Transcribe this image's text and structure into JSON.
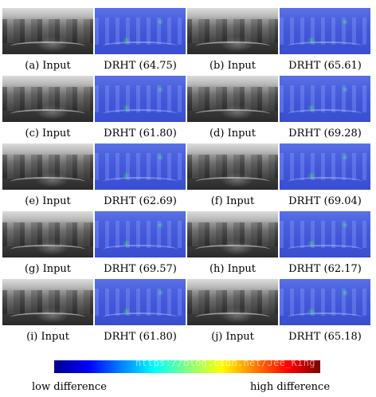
{
  "panels": [
    {
      "input_label": "(a) Input",
      "result_label": "DRHT (64.75)"
    },
    {
      "input_label": "(b) Input",
      "result_label": "DRHT (65.61)"
    },
    {
      "input_label": "(c) Input",
      "result_label": "DRHT (61.80)"
    },
    {
      "input_label": "(d) Input",
      "result_label": "DRHT (69.28)"
    },
    {
      "input_label": "(e) Input",
      "result_label": "DRHT (62.69)"
    },
    {
      "input_label": "(f) Input",
      "result_label": "DRHT (69.04)"
    },
    {
      "input_label": "(g) Input",
      "result_label": "DRHT (69.57)"
    },
    {
      "input_label": "(h) Input",
      "result_label": "DRHT (62.17)"
    },
    {
      "input_label": "(i) Input",
      "result_label": "DRHT (61.80)"
    },
    {
      "input_label": "(j) Input",
      "result_label": "DRHT (65.18)"
    }
  ],
  "colorbar": {
    "low_label": "low difference",
    "high_label": "high difference",
    "colors": [
      "#00008f",
      "#0000ff",
      "#0080ff",
      "#00ffff",
      "#80ff80",
      "#ffff00",
      "#ff8000",
      "#ff0000",
      "#800000"
    ]
  },
  "watermark": "https://blog.csdn.net/Jee_King"
}
